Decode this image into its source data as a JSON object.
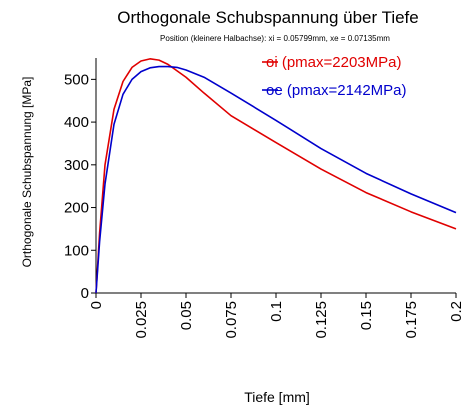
{
  "chart_data": {
    "type": "line",
    "title": "Orthogonale Schubspannung über Tiefe",
    "subtitle": "Position (kleinere Halbachse): xi = 0.05799mm, xe = 0.07135mm",
    "xlabel": "Tiefe [mm]",
    "ylabel": "Orthogonale Schubspannung [MPa]",
    "xlim": [
      0,
      0.2
    ],
    "ylim": [
      0,
      550
    ],
    "xticks": [
      "0",
      "0.025",
      "0.05",
      "0.075",
      "0.1",
      "0.125",
      "0.15",
      "0.175",
      "0.2"
    ],
    "yticks": [
      "0",
      "100",
      "200",
      "300",
      "400",
      "500"
    ],
    "grid": false,
    "legend_position": "top-right",
    "series": [
      {
        "name": "oi (pmax=2203MPa)",
        "color": "#e00000",
        "x": [
          0,
          0.002,
          0.005,
          0.01,
          0.015,
          0.02,
          0.025,
          0.03,
          0.035,
          0.04,
          0.05,
          0.06,
          0.075,
          0.1,
          0.125,
          0.15,
          0.175,
          0.2
        ],
        "y": [
          0,
          140,
          300,
          430,
          495,
          528,
          543,
          548,
          545,
          535,
          505,
          468,
          415,
          352,
          290,
          235,
          190,
          150
        ]
      },
      {
        "name": "oe (pmax=2142MPa)",
        "color": "#0000cc",
        "x": [
          0,
          0.002,
          0.005,
          0.01,
          0.015,
          0.02,
          0.025,
          0.03,
          0.035,
          0.04,
          0.045,
          0.05,
          0.06,
          0.075,
          0.1,
          0.125,
          0.15,
          0.175,
          0.2
        ],
        "y": [
          0,
          120,
          255,
          395,
          465,
          500,
          518,
          527,
          530,
          530,
          528,
          522,
          505,
          468,
          404,
          338,
          280,
          232,
          188
        ]
      }
    ]
  }
}
